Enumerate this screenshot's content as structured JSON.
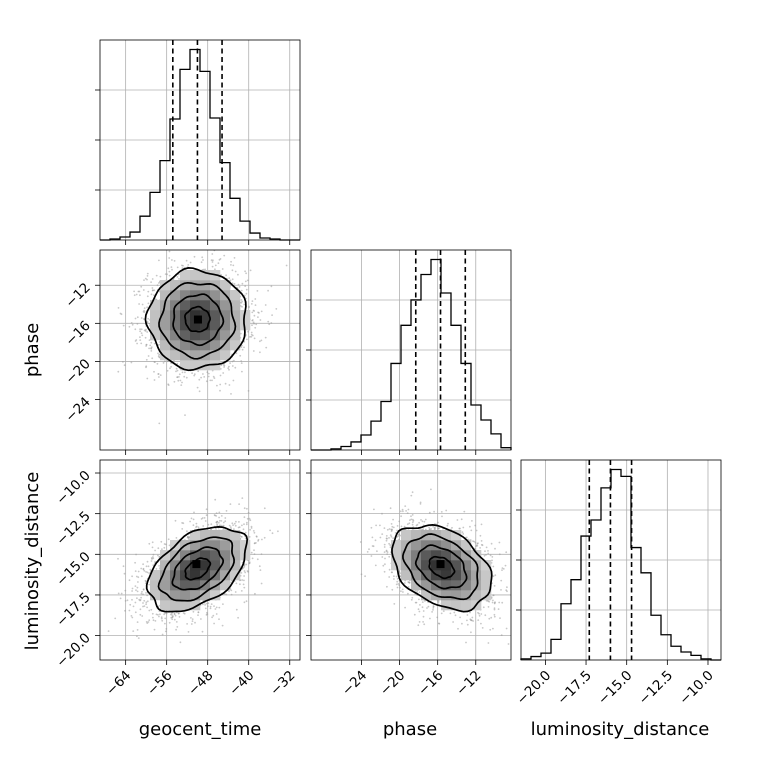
{
  "chart_data": {
    "type": "corner",
    "parameters": [
      "geocent_time",
      "phase",
      "luminosity_distance"
    ],
    "axis_labels": {
      "geocent_time": "geocent_time",
      "phase": "phase",
      "luminosity_distance": "luminosity_distance"
    },
    "ranges": {
      "geocent_time": [
        -69,
        -30
      ],
      "phase": [
        -29.3,
        -8.3
      ],
      "luminosity_distance": [
        -21.5,
        -9.2
      ]
    },
    "ticks": {
      "geocent_time": [
        -64,
        -56,
        -48,
        -40,
        -32
      ],
      "phase": [
        -24,
        -20,
        -16,
        -12
      ],
      "luminosity_distance": [
        -20.0,
        -17.5,
        -15.0,
        -12.5,
        -10.0
      ]
    },
    "tick_labels": {
      "geocent_time": [
        "−64",
        "−56",
        "−48",
        "−40",
        "−32"
      ],
      "phase": [
        "−24",
        "−20",
        "−16",
        "−12"
      ],
      "luminosity_distance": [
        "−20.0",
        "−17.5",
        "−15.0",
        "−12.5",
        "−10.0"
      ]
    },
    "quantiles": {
      "geocent_time": [
        -54.8,
        -50.0,
        -45.2
      ],
      "phase": [
        -18.3,
        -15.7,
        -13.1
      ],
      "luminosity_distance": [
        -17.3,
        -16.0,
        -14.7
      ]
    },
    "histograms": {
      "geocent_time": {
        "edges": [
          -69.0,
          -67.05,
          -65.1,
          -63.15,
          -61.2,
          -59.25,
          -57.3,
          -55.35,
          -53.4,
          -51.45,
          -49.5,
          -47.55,
          -45.6,
          -43.65,
          -41.7,
          -39.75,
          -37.8,
          -35.85,
          -33.9,
          -31.95,
          -30.0
        ],
        "counts": [
          0,
          1,
          3,
          8,
          24,
          48,
          80,
          122,
          172,
          192,
          170,
          123,
          78,
          42,
          19,
          7,
          2,
          1,
          0,
          0
        ]
      },
      "phase": {
        "edges": [
          -29.3,
          -28.25,
          -27.2,
          -26.15,
          -25.1,
          -24.05,
          -23.0,
          -21.95,
          -20.9,
          -19.85,
          -18.8,
          -17.75,
          -16.7,
          -15.65,
          -14.6,
          -13.55,
          -12.5,
          -11.45,
          -10.4,
          -9.35,
          -8.3
        ],
        "counts": [
          0,
          0,
          1,
          3,
          7,
          13,
          25,
          42,
          75,
          108,
          130,
          152,
          165,
          136,
          108,
          75,
          39,
          26,
          14,
          2
        ]
      },
      "luminosity_distance": {
        "edges": [
          -21.5,
          -20.885,
          -20.27,
          -19.655,
          -19.04,
          -18.425,
          -17.81,
          -17.195,
          -16.58,
          -15.965,
          -15.35,
          -14.735,
          -14.12,
          -13.505,
          -12.89,
          -12.275,
          -11.66,
          -11.045,
          -10.43,
          -9.815,
          -9.2
        ],
        "counts": [
          1,
          3,
          6,
          18,
          49,
          70,
          108,
          122,
          150,
          166,
          160,
          98,
          76,
          39,
          22,
          12,
          7,
          4,
          1,
          0
        ]
      }
    },
    "pairs": [
      {
        "x": "geocent_time",
        "y": "phase",
        "mean": [
          -50,
          -15.6
        ],
        "std": [
          4.8,
          2.6
        ],
        "corr": 0.0,
        "peak": [
          -49.9,
          -15.6
        ],
        "contour_sigmas": [
          0.5,
          1.0,
          1.5,
          2.0
        ]
      },
      {
        "x": "geocent_time",
        "y": "luminosity_distance",
        "mean": [
          -50,
          -15.9
        ],
        "std": [
          4.8,
          1.3
        ],
        "corr": 0.45,
        "peak": [
          -50.2,
          -15.6
        ],
        "contour_sigmas": [
          0.5,
          1.0,
          1.5,
          2.0
        ]
      },
      {
        "x": "phase",
        "y": "luminosity_distance",
        "mean": [
          -15.6,
          -15.8
        ],
        "std": [
          2.6,
          1.3
        ],
        "corr": -0.35,
        "peak": [
          -15.7,
          -15.6
        ],
        "contour_sigmas": [
          0.5,
          1.0,
          1.5,
          2.0
        ]
      }
    ],
    "grid": true,
    "colors": {
      "ink": "#000000",
      "grid": "#b0b0b0",
      "scatter": "#9a9a9a"
    }
  }
}
